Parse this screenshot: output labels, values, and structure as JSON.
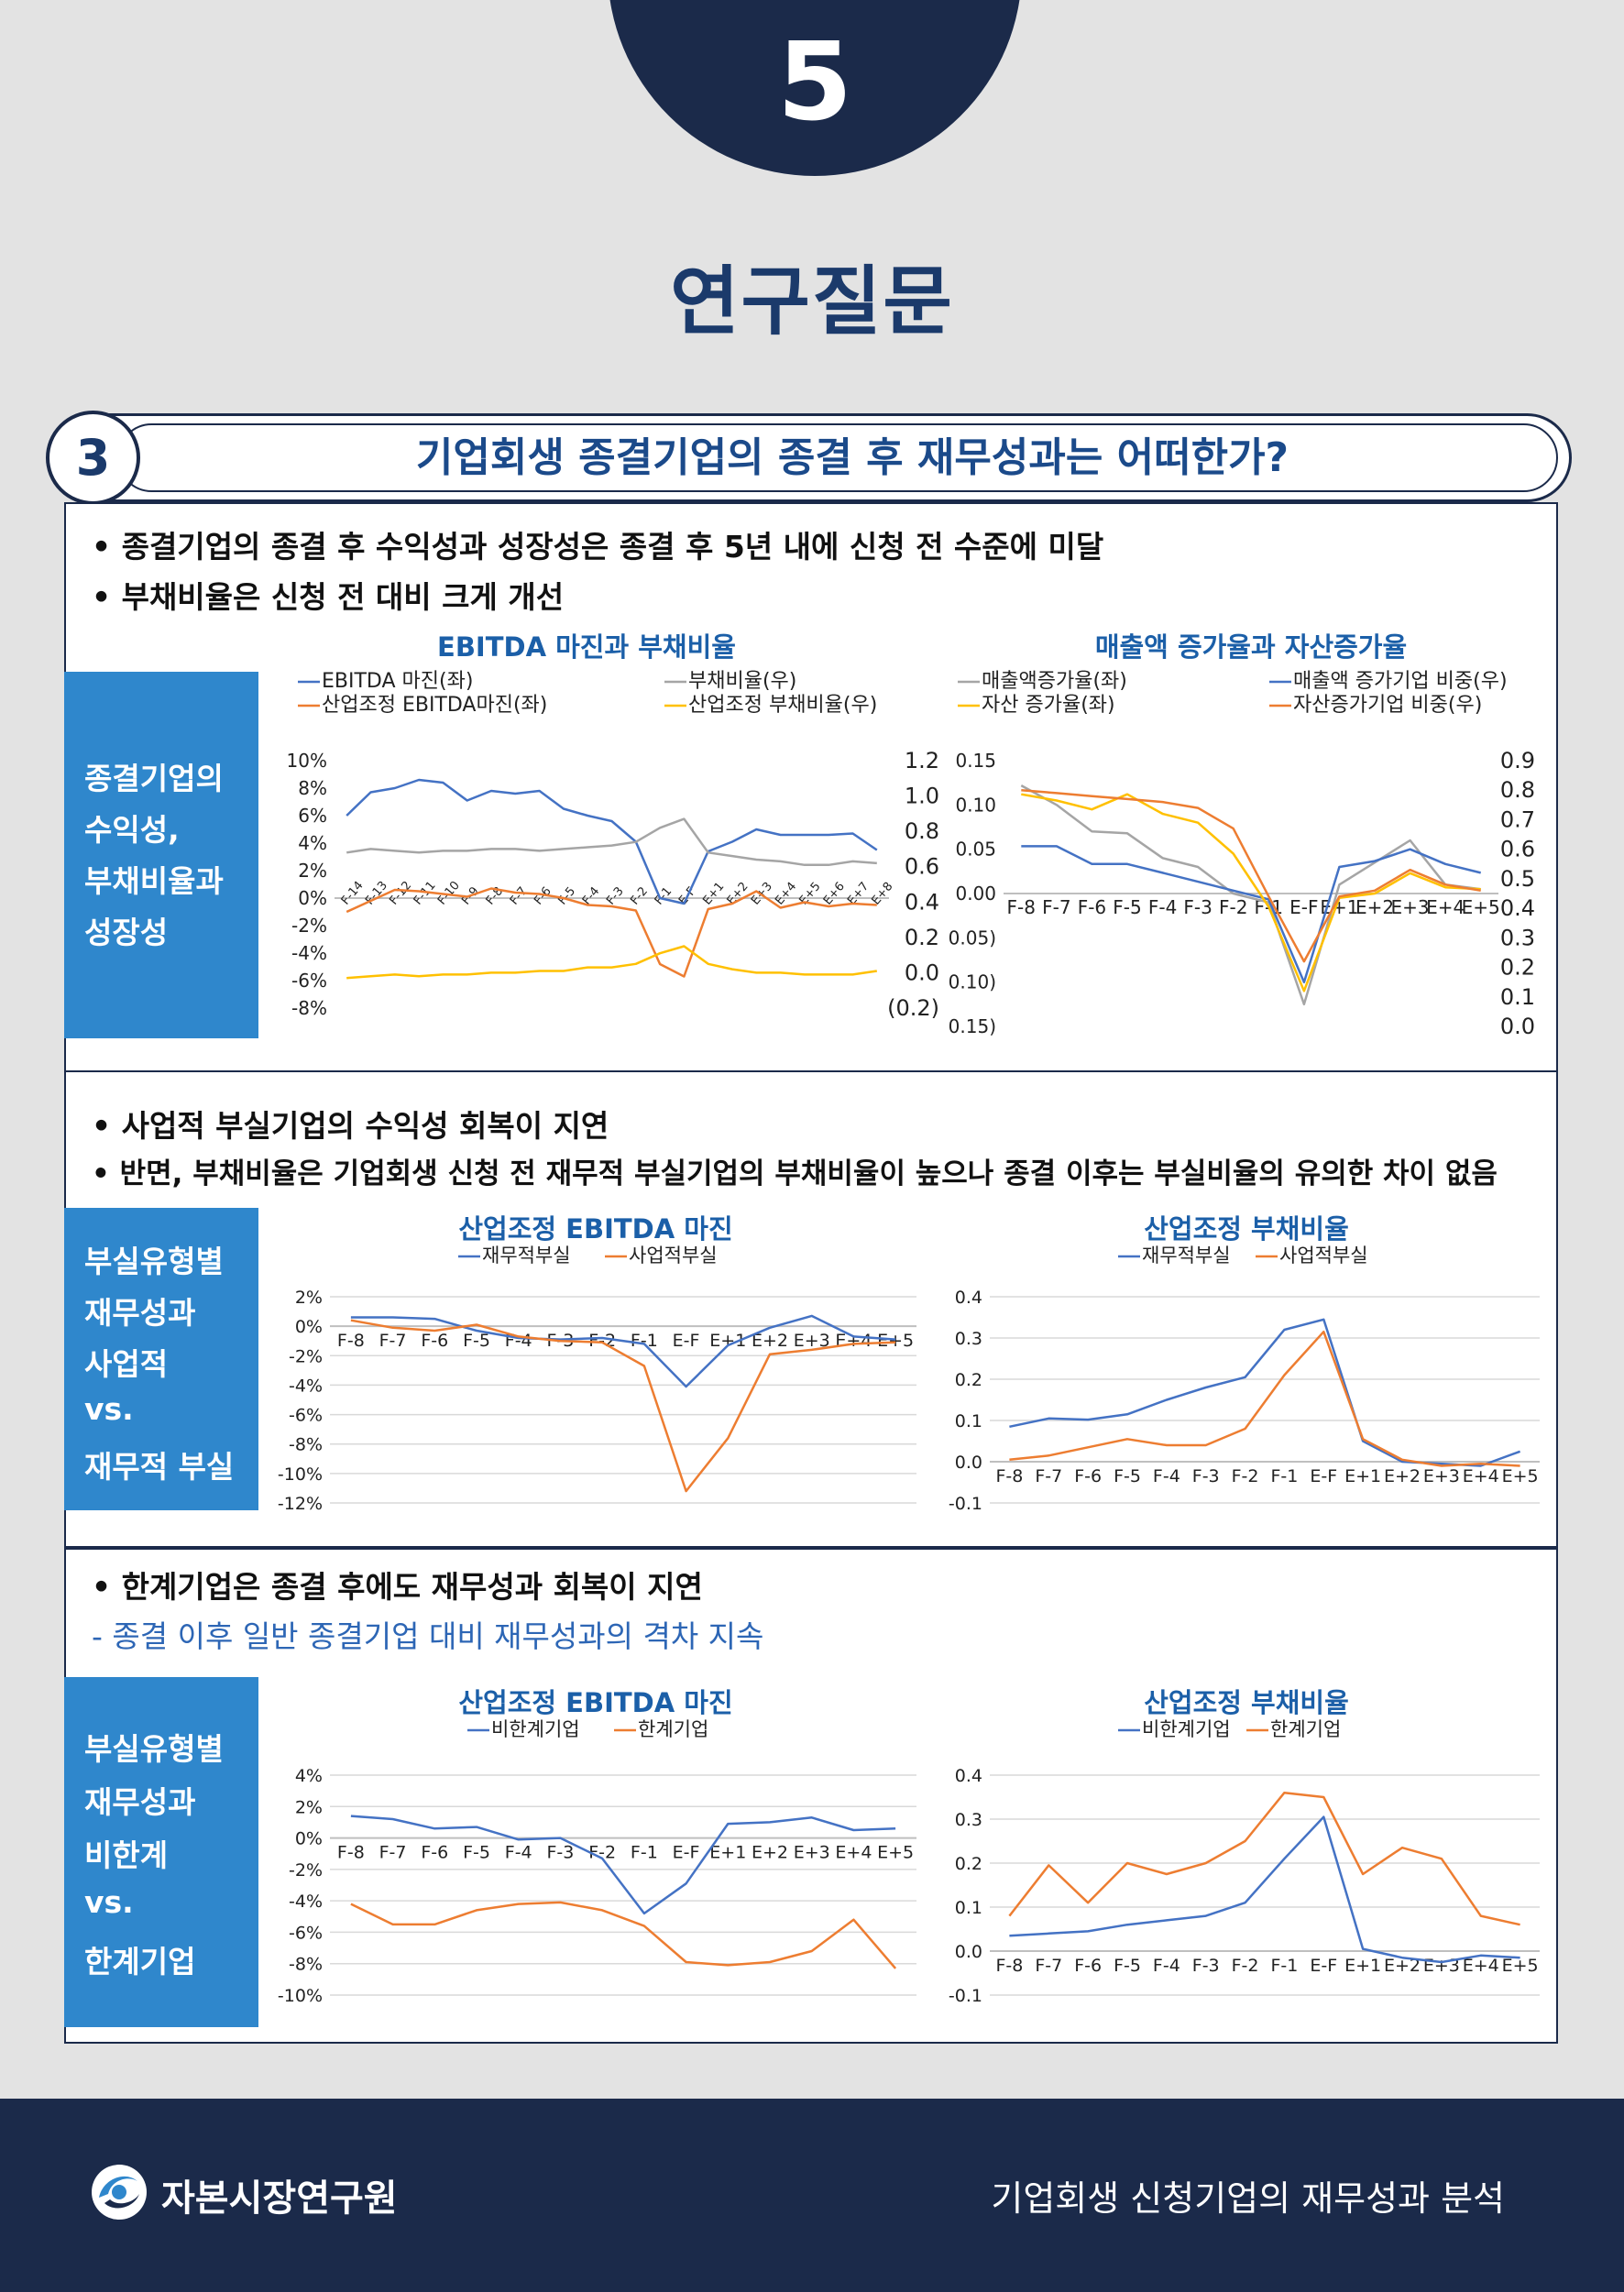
{
  "header": {
    "number": "5",
    "title": "연구질문"
  },
  "question": {
    "number": "3",
    "text": "기업회생 종결기업의 종결 후 재무성과는 어떠한가?"
  },
  "section1": {
    "bullets": [
      "• 종결기업의 종결 후 수익성과 성장성은 종결 후 5년 내에 신청 전 수준에 미달",
      "• 부채비율은 신청 전 대비 크게 개선"
    ],
    "side_label": [
      "종결기업의",
      "수익성,",
      "부채비율과",
      "성장성"
    ]
  },
  "section2": {
    "bullets": [
      "• 사업적 부실기업의 수익성 회복이 지연",
      "• 반면, 부채비율은 기업회생 신청 전 재무적 부실기업의 부채비율이 높으나 종결 이후는 부실비율의 유의한 차이 없음"
    ],
    "side_label": [
      "부실유형별",
      "재무성과",
      "사업적",
      "vs.",
      "재무적 부실"
    ]
  },
  "section3": {
    "bullets": [
      "• 한계기업은 종결 후에도 재무성과 회복이 지연",
      "- 종결 이후 일반 종결기업 대비 재무성과의 격차 지속"
    ],
    "side_label": [
      "부실유형별",
      "재무성과",
      "비한계",
      "vs.",
      "한계기업"
    ]
  },
  "colors": {
    "blue": "#4472c4",
    "orange": "#ed7d31",
    "gray": "#a5a5a5",
    "yellow": "#ffc000"
  },
  "chart_data": [
    {
      "id": "c1",
      "type": "line",
      "title": "EBITDA 마진과 부채비율",
      "categories": [
        "F-14",
        "F-13",
        "F-12",
        "F-11",
        "F-10",
        "F-9",
        "F-8",
        "F-7",
        "F-6",
        "F-5",
        "F-4",
        "F-3",
        "F-2",
        "F-1",
        "E-F",
        "E+1",
        "E+2",
        "E+3",
        "E+4",
        "E+5",
        "E+6",
        "E+7",
        "E+8"
      ],
      "ylim": [
        -8,
        10
      ],
      "yticks": [
        "10%",
        "8%",
        "6%",
        "4%",
        "2%",
        "0%",
        "-2%",
        "-4%",
        "-6%",
        "-8%"
      ],
      "ylim_right": [
        -0.2,
        1.2
      ],
      "yticks_right": [
        "1.2",
        "1.0",
        "0.8",
        "0.6",
        "0.4",
        "0.2",
        "0.0",
        "(0.2)"
      ],
      "series": [
        {
          "name": "EBITDA 마진(좌)",
          "axis": "left",
          "color": "#4472c4",
          "values": [
            6.0,
            7.7,
            8.0,
            8.6,
            8.4,
            7.1,
            7.8,
            7.6,
            7.8,
            6.5,
            6.0,
            5.6,
            4.1,
            0.0,
            -0.4,
            3.4,
            4.1,
            5.0,
            4.6,
            4.6,
            4.6,
            4.7,
            3.5
          ]
        },
        {
          "name": "부채비율(우)",
          "axis": "right",
          "color": "#a5a5a5",
          "values": [
            0.68,
            0.7,
            0.69,
            0.68,
            0.69,
            0.69,
            0.7,
            0.7,
            0.69,
            0.7,
            0.71,
            0.72,
            0.74,
            0.82,
            0.87,
            0.68,
            0.66,
            0.64,
            0.63,
            0.61,
            0.61,
            0.63,
            0.62
          ]
        },
        {
          "name": "산업조정 EBITDA마진(좌)",
          "axis": "left",
          "color": "#ed7d31",
          "values": [
            -1.0,
            -0.2,
            0.6,
            0.5,
            0.3,
            0.1,
            0.7,
            0.4,
            0.3,
            0.0,
            -0.5,
            -0.6,
            -0.9,
            -4.8,
            -5.7,
            -0.8,
            -0.4,
            0.5,
            -0.7,
            -0.3,
            -0.6,
            -0.4,
            -0.5
          ]
        },
        {
          "name": "산업조정 부채비율(우)",
          "axis": "right",
          "color": "#ffc000",
          "values": [
            -0.03,
            -0.02,
            -0.01,
            -0.02,
            -0.01,
            -0.01,
            0.0,
            0.0,
            0.01,
            0.01,
            0.03,
            0.03,
            0.05,
            0.11,
            0.15,
            0.05,
            0.02,
            0.0,
            0.0,
            -0.01,
            -0.01,
            -0.01,
            0.01
          ]
        }
      ]
    },
    {
      "id": "c2",
      "type": "line",
      "title": "매출액 증가율과 자산증가율",
      "categories": [
        "F-8",
        "F-7",
        "F-6",
        "F-5",
        "F-4",
        "F-3",
        "F-2",
        "F-1",
        "E-F",
        "E+1",
        "E+2",
        "E+3",
        "E+4",
        "E+5"
      ],
      "ylim": [
        -0.15,
        0.15
      ],
      "yticks": [
        "0.15",
        "0.10",
        "0.05",
        "0.00",
        "(0.05)",
        "(0.10)",
        "(0.15)"
      ],
      "ylim_right": [
        0.0,
        0.9
      ],
      "yticks_right": [
        "0.9",
        "0.8",
        "0.7",
        "0.6",
        "0.5",
        "0.4",
        "0.3",
        "0.2",
        "0.1",
        "0.0"
      ],
      "series": [
        {
          "name": "매출액증가율(좌)",
          "axis": "left",
          "color": "#a5a5a5",
          "values": [
            0.122,
            0.1,
            0.07,
            0.068,
            0.04,
            0.03,
            0.0,
            -0.01,
            -0.125,
            0.01,
            0.035,
            0.06,
            0.01,
            0.005
          ]
        },
        {
          "name": "매출액 증가기업 비중(우)",
          "axis": "right",
          "color": "#4472c4",
          "values": [
            0.61,
            0.61,
            0.55,
            0.55,
            0.52,
            0.49,
            0.46,
            0.43,
            0.15,
            0.54,
            0.56,
            0.6,
            0.55,
            0.52
          ]
        },
        {
          "name": "자산 증가율(좌)",
          "axis": "left",
          "color": "#ffc000",
          "values": [
            0.112,
            0.105,
            0.095,
            0.112,
            0.09,
            0.08,
            0.045,
            -0.015,
            -0.11,
            -0.005,
            0.0,
            0.023,
            0.007,
            0.005
          ]
        },
        {
          "name": "자산증가기업 비중(우)",
          "axis": "right",
          "color": "#ed7d31",
          "values": [
            0.8,
            0.79,
            0.78,
            0.77,
            0.76,
            0.74,
            0.67,
            0.44,
            0.22,
            0.44,
            0.46,
            0.53,
            0.48,
            0.46
          ]
        }
      ]
    },
    {
      "id": "c3",
      "type": "line",
      "title": "산업조정 EBITDA 마진",
      "categories": [
        "F-8",
        "F-7",
        "F-6",
        "F-5",
        "F-4",
        "F-3",
        "F-2",
        "F-1",
        "E-F",
        "E+1",
        "E+2",
        "E+3",
        "E+4",
        "E+5"
      ],
      "ylim": [
        -12,
        2
      ],
      "yticks": [
        "2%",
        "0%",
        "-2%",
        "-4%",
        "-6%",
        "-8%",
        "-10%",
        "-12%"
      ],
      "series": [
        {
          "name": "재무적부실",
          "color": "#4472c4",
          "values": [
            0.6,
            0.6,
            0.5,
            -0.3,
            -0.8,
            -0.9,
            -0.8,
            -1.2,
            -4.1,
            -1.3,
            -0.1,
            0.7,
            -0.7,
            -0.9
          ]
        },
        {
          "name": "사업적부실",
          "color": "#ed7d31",
          "values": [
            0.4,
            -0.1,
            -0.3,
            0.1,
            -0.7,
            -1.0,
            -1.1,
            -2.7,
            -11.2,
            -7.6,
            -1.9,
            -1.6,
            -1.2,
            -1.1
          ]
        }
      ]
    },
    {
      "id": "c4",
      "type": "line",
      "title": "산업조정 부채비율",
      "categories": [
        "F-8",
        "F-7",
        "F-6",
        "F-5",
        "F-4",
        "F-3",
        "F-2",
        "F-1",
        "E-F",
        "E+1",
        "E+2",
        "E+3",
        "E+4",
        "E+5"
      ],
      "ylim": [
        -0.1,
        0.4
      ],
      "yticks": [
        "0.4",
        "0.3",
        "0.2",
        "0.1",
        "0.0",
        "-0.1"
      ],
      "series": [
        {
          "name": "재무적부실",
          "color": "#4472c4",
          "values": [
            0.085,
            0.105,
            0.102,
            0.115,
            0.15,
            0.18,
            0.205,
            0.32,
            0.345,
            0.05,
            0.0,
            -0.005,
            -0.01,
            0.025
          ]
        },
        {
          "name": "사업적부실",
          "color": "#ed7d31",
          "values": [
            0.005,
            0.015,
            0.035,
            0.055,
            0.04,
            0.04,
            0.08,
            0.21,
            0.315,
            0.055,
            0.005,
            -0.01,
            -0.005,
            -0.01
          ]
        }
      ]
    },
    {
      "id": "c5",
      "type": "line",
      "title": "산업조정 EBITDA 마진",
      "categories": [
        "F-8",
        "F-7",
        "F-6",
        "F-5",
        "F-4",
        "F-3",
        "F-2",
        "F-1",
        "E-F",
        "E+1",
        "E+2",
        "E+3",
        "E+4",
        "E+5"
      ],
      "ylim": [
        -10,
        4
      ],
      "yticks": [
        "4%",
        "2%",
        "0%",
        "-2%",
        "-4%",
        "-6%",
        "-8%",
        "-10%"
      ],
      "series": [
        {
          "name": "비한계기업",
          "color": "#4472c4",
          "values": [
            1.4,
            1.2,
            0.6,
            0.7,
            -0.1,
            0.0,
            -1.3,
            -4.8,
            -2.9,
            0.9,
            1.0,
            1.3,
            0.5,
            0.6
          ]
        },
        {
          "name": "한계기업",
          "color": "#ed7d31",
          "values": [
            -4.2,
            -5.5,
            -5.5,
            -4.6,
            -4.2,
            -4.1,
            -4.6,
            -5.6,
            -7.9,
            -8.1,
            -7.9,
            -7.2,
            -5.2,
            -8.3
          ]
        }
      ]
    },
    {
      "id": "c6",
      "type": "line",
      "title": "산업조정 부채비율",
      "categories": [
        "F-8",
        "F-7",
        "F-6",
        "F-5",
        "F-4",
        "F-3",
        "F-2",
        "F-1",
        "E-F",
        "E+1",
        "E+2",
        "E+3",
        "E+4",
        "E+5"
      ],
      "ylim": [
        -0.1,
        0.4
      ],
      "yticks": [
        "0.4",
        "0.3",
        "0.2",
        "0.1",
        "0.0",
        "-0.1"
      ],
      "series": [
        {
          "name": "비한계기업",
          "color": "#4472c4",
          "values": [
            0.035,
            0.04,
            0.045,
            0.06,
            0.07,
            0.08,
            0.11,
            0.21,
            0.305,
            0.005,
            -0.015,
            -0.025,
            -0.01,
            -0.015
          ]
        },
        {
          "name": "한계기업",
          "color": "#ed7d31",
          "values": [
            0.08,
            0.195,
            0.11,
            0.2,
            0.175,
            0.2,
            0.25,
            0.36,
            0.35,
            0.175,
            0.235,
            0.21,
            0.08,
            0.06
          ]
        }
      ]
    }
  ],
  "footer": {
    "brand": "자본시장연구원",
    "right_text": "기업회생 신청기업의 재무성과 분석"
  }
}
